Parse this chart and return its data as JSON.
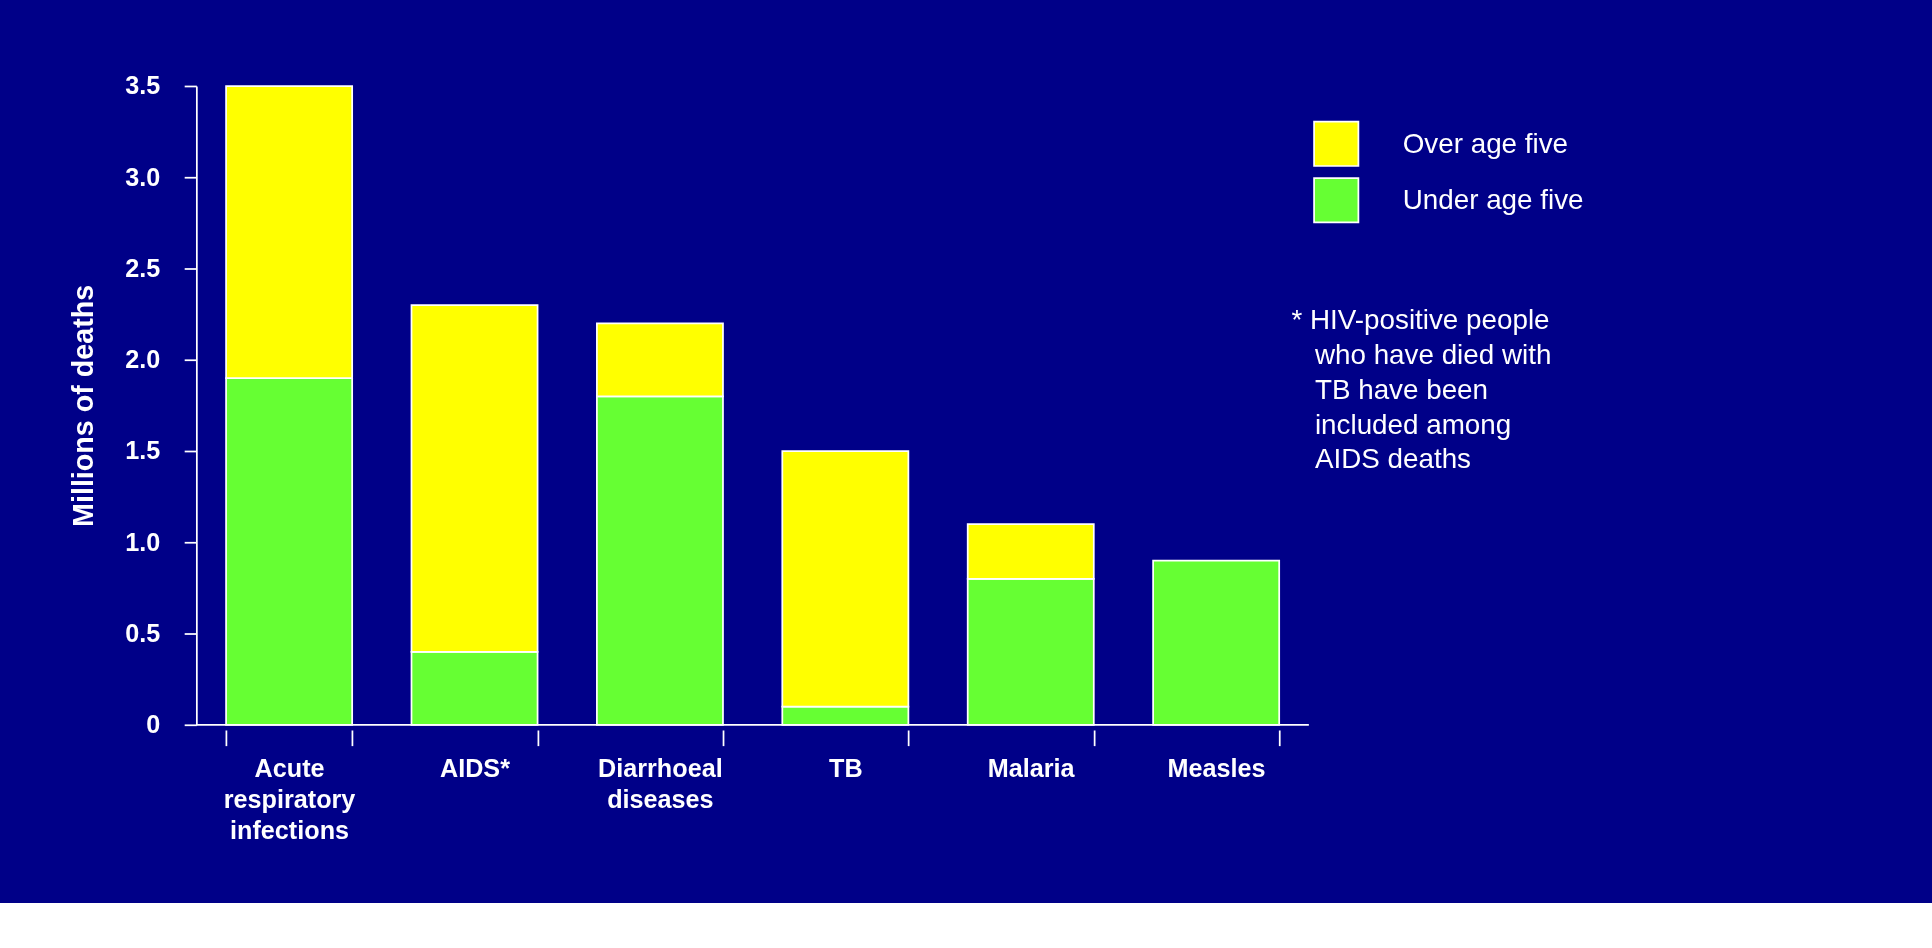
{
  "chart_data": {
    "type": "bar",
    "stacked": true,
    "ylabel": "Millions of deaths",
    "categories": [
      "Acute respiratory infections",
      "AIDS*",
      "Diarrhoeal diseases",
      "TB",
      "Malaria",
      "Measles"
    ],
    "series": [
      {
        "name": "Under age five",
        "color": "#66ff33",
        "values": [
          1.9,
          0.4,
          1.8,
          0.1,
          0.8,
          0.9
        ]
      },
      {
        "name": "Over age five",
        "color": "#ffff00",
        "values": [
          1.6,
          1.9,
          0.4,
          1.4,
          0.3,
          0
        ]
      }
    ],
    "ylim": [
      0,
      3.5
    ],
    "yticks": [
      0,
      {
        "value": 0.5,
        "label": "0.5"
      },
      {
        "value": 1,
        "label": "1.0"
      },
      {
        "value": 1.5,
        "label": "1.5"
      },
      {
        "value": 2,
        "label": "2.0"
      },
      {
        "value": 2.5,
        "label": "2.5"
      },
      {
        "value": 3,
        "label": "3.0"
      },
      {
        "value": 3.5,
        "label": "3.5"
      }
    ],
    "grid": false,
    "legend": "top right",
    "annotations": [
      "* HIV-positive people\n   who have died with\n   TB have been\n   included among\n   AIDS deaths"
    ]
  }
}
